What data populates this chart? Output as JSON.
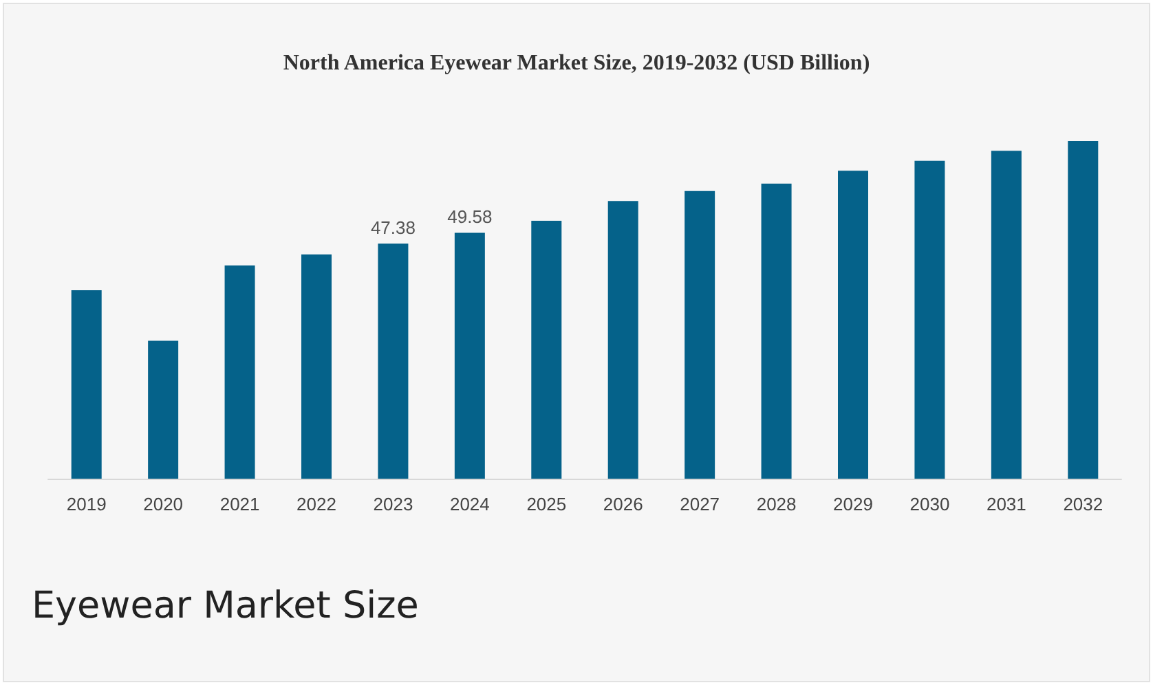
{
  "chart_data": {
    "type": "bar",
    "title": "North America Eyewear Market Size, 2019-2032 (USD Billion)",
    "categories": [
      "2019",
      "2020",
      "2021",
      "2022",
      "2023",
      "2024",
      "2025",
      "2026",
      "2027",
      "2028",
      "2029",
      "2030",
      "2031",
      "2032"
    ],
    "values": [
      38.0,
      27.8,
      43.0,
      45.2,
      47.38,
      49.58,
      52.0,
      56.0,
      58.0,
      59.5,
      62.1,
      64.1,
      66.1,
      68.1
    ],
    "value_labels": [
      null,
      null,
      null,
      null,
      "47.38",
      "49.58",
      null,
      null,
      null,
      null,
      null,
      null,
      null,
      null
    ],
    "color": "#05628a",
    "annotations": [
      "Eyewear Market Size"
    ]
  }
}
